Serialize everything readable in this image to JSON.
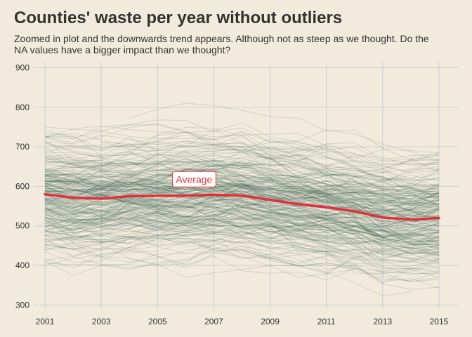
{
  "chart_data": {
    "type": "line",
    "title": "Counties' waste per year without outliers",
    "subtitle": "Zoomed in plot and the downwards trend appears. Although not as steep as we thought. Do the NA values have a bigger impact than we thought?",
    "xlabel": "",
    "ylabel": "",
    "x": [
      2001,
      2002,
      2003,
      2004,
      2005,
      2006,
      2007,
      2008,
      2009,
      2010,
      2011,
      2012,
      2013,
      2014,
      2015
    ],
    "x_ticks": [
      2001,
      2003,
      2005,
      2007,
      2009,
      2011,
      2013,
      2015
    ],
    "y_ticks": [
      300,
      400,
      500,
      600,
      700,
      800,
      900
    ],
    "xlim": [
      2000.6,
      2015.7
    ],
    "ylim": [
      290,
      915
    ],
    "grid": true,
    "series": [
      {
        "name": "Average",
        "values": [
          580,
          571,
          569,
          575,
          576,
          576,
          579,
          576,
          566,
          555,
          547,
          537,
          521,
          516,
          520
        ],
        "color": "#e0313a"
      }
    ],
    "county_series_note": "",
    "annotations": [
      {
        "text": "Average",
        "x": 2006.3,
        "y": 618
      }
    ],
    "colors": {
      "background": "#f2ebdd",
      "grid": "#c9ced0",
      "county_lines": "#2d5a4a",
      "average": "#e0313a"
    }
  }
}
